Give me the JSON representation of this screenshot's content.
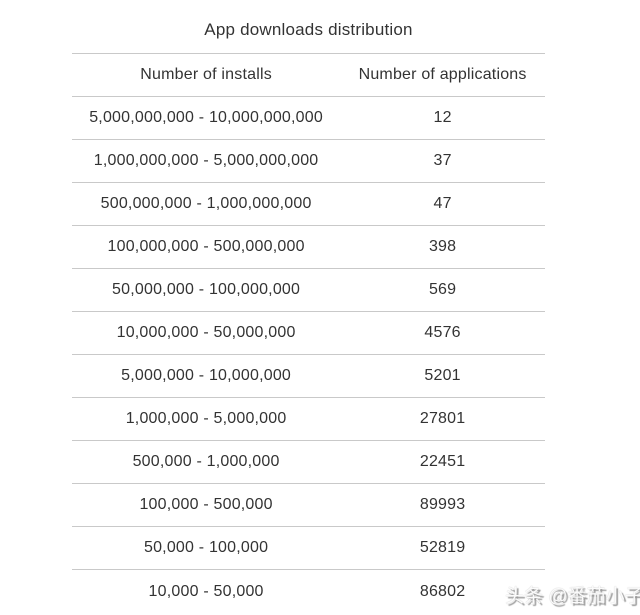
{
  "page": {
    "title": "App downloads distribution",
    "watermark": "头条 @番茄小子"
  },
  "table": {
    "headers": {
      "installs": "Number of installs",
      "applications": "Number of applications"
    },
    "rows": [
      {
        "installs": "5,000,000,000 - 10,000,000,000",
        "applications": "12"
      },
      {
        "installs": "1,000,000,000 - 5,000,000,000",
        "applications": "37"
      },
      {
        "installs": "500,000,000 - 1,000,000,000",
        "applications": "47"
      },
      {
        "installs": "100,000,000 - 500,000,000",
        "applications": "398"
      },
      {
        "installs": "50,000,000 - 100,000,000",
        "applications": "569"
      },
      {
        "installs": "10,000,000 - 50,000,000",
        "applications": "4576"
      },
      {
        "installs": "5,000,000 - 10,000,000",
        "applications": "5201"
      },
      {
        "installs": "1,000,000 - 5,000,000",
        "applications": "27801"
      },
      {
        "installs": "500,000 - 1,000,000",
        "applications": "22451"
      },
      {
        "installs": "100,000 - 500,000",
        "applications": "89993"
      },
      {
        "installs": "50,000 - 100,000",
        "applications": "52819"
      },
      {
        "installs": "10,000 - 50,000",
        "applications": "86802"
      }
    ]
  },
  "colors": {
    "text": "#333333",
    "border": "#c9c9c9",
    "background": "#ffffff",
    "watermark_shadow": "#979797"
  },
  "chart_data": {
    "type": "table",
    "title": "App downloads distribution",
    "columns": [
      "Number of installs",
      "Number of applications"
    ],
    "categories": [
      "5,000,000,000 - 10,000,000,000",
      "1,000,000,000 - 5,000,000,000",
      "500,000,000 - 1,000,000,000",
      "100,000,000 - 500,000,000",
      "50,000,000 - 100,000,000",
      "10,000,000 - 50,000,000",
      "5,000,000 - 10,000,000",
      "1,000,000 - 5,000,000",
      "500,000 - 1,000,000",
      "100,000 - 500,000",
      "50,000 - 100,000",
      "10,000 - 50,000"
    ],
    "values": [
      12,
      37,
      47,
      398,
      569,
      4576,
      5201,
      27801,
      22451,
      89993,
      52819,
      86802
    ]
  }
}
